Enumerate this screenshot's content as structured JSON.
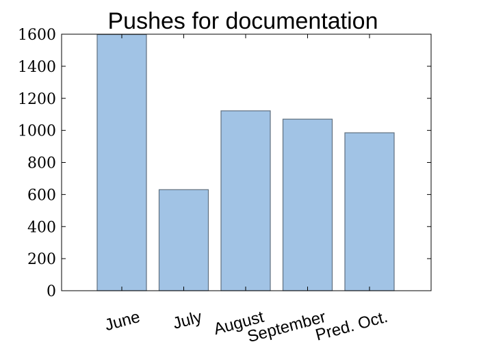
{
  "chart_data": {
    "type": "bar",
    "title": "Pushes for documentation",
    "categories": [
      "June",
      "July",
      "August",
      "September",
      "Pred. Oct."
    ],
    "values": [
      1598,
      630,
      1122,
      1070,
      985
    ],
    "xlabel": "",
    "ylabel": "",
    "ylim": [
      0,
      1600
    ],
    "yticks": [
      "0",
      "200",
      "400",
      "600",
      "800",
      "1000",
      "1200",
      "1400",
      "1600"
    ],
    "grid": false,
    "colors": {
      "bar_fill": "#a1c3e5",
      "bar_edge": "#5f6f7e",
      "axis": "#000000"
    }
  }
}
